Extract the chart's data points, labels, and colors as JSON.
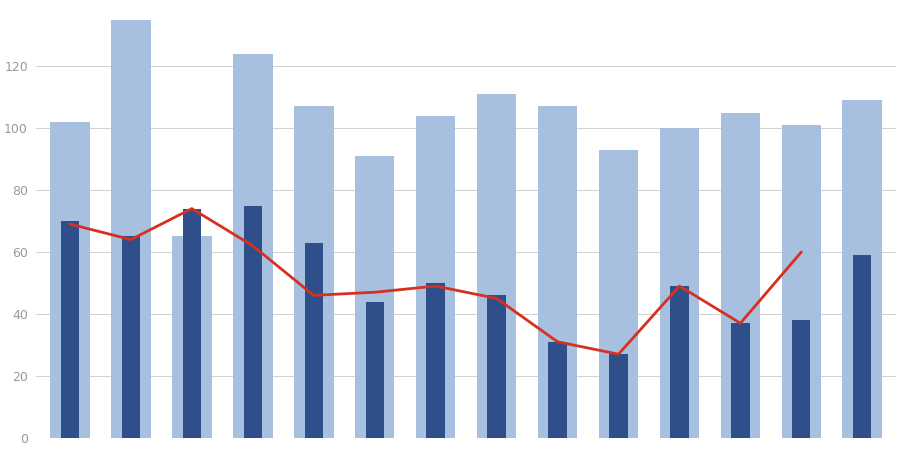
{
  "light_blue_bars": [
    102,
    135,
    65,
    124,
    107,
    91,
    104,
    111,
    107,
    93,
    100,
    105,
    101,
    109
  ],
  "dark_blue_bars": [
    70,
    65,
    74,
    75,
    63,
    44,
    50,
    46,
    31,
    27,
    49,
    37,
    38,
    59
  ],
  "red_line": [
    69,
    64,
    74,
    62,
    46,
    47,
    49,
    45,
    31,
    27,
    49,
    37,
    60
  ],
  "light_bar_color": "#a8c0e0",
  "dark_bar_color": "#2e4f8a",
  "line_color": "#d63020",
  "background": "#ffffff",
  "grid_color": "#d0d0d0",
  "ylim": [
    0,
    140
  ],
  "yticks": [
    0,
    20,
    40,
    60,
    80,
    100,
    120
  ]
}
